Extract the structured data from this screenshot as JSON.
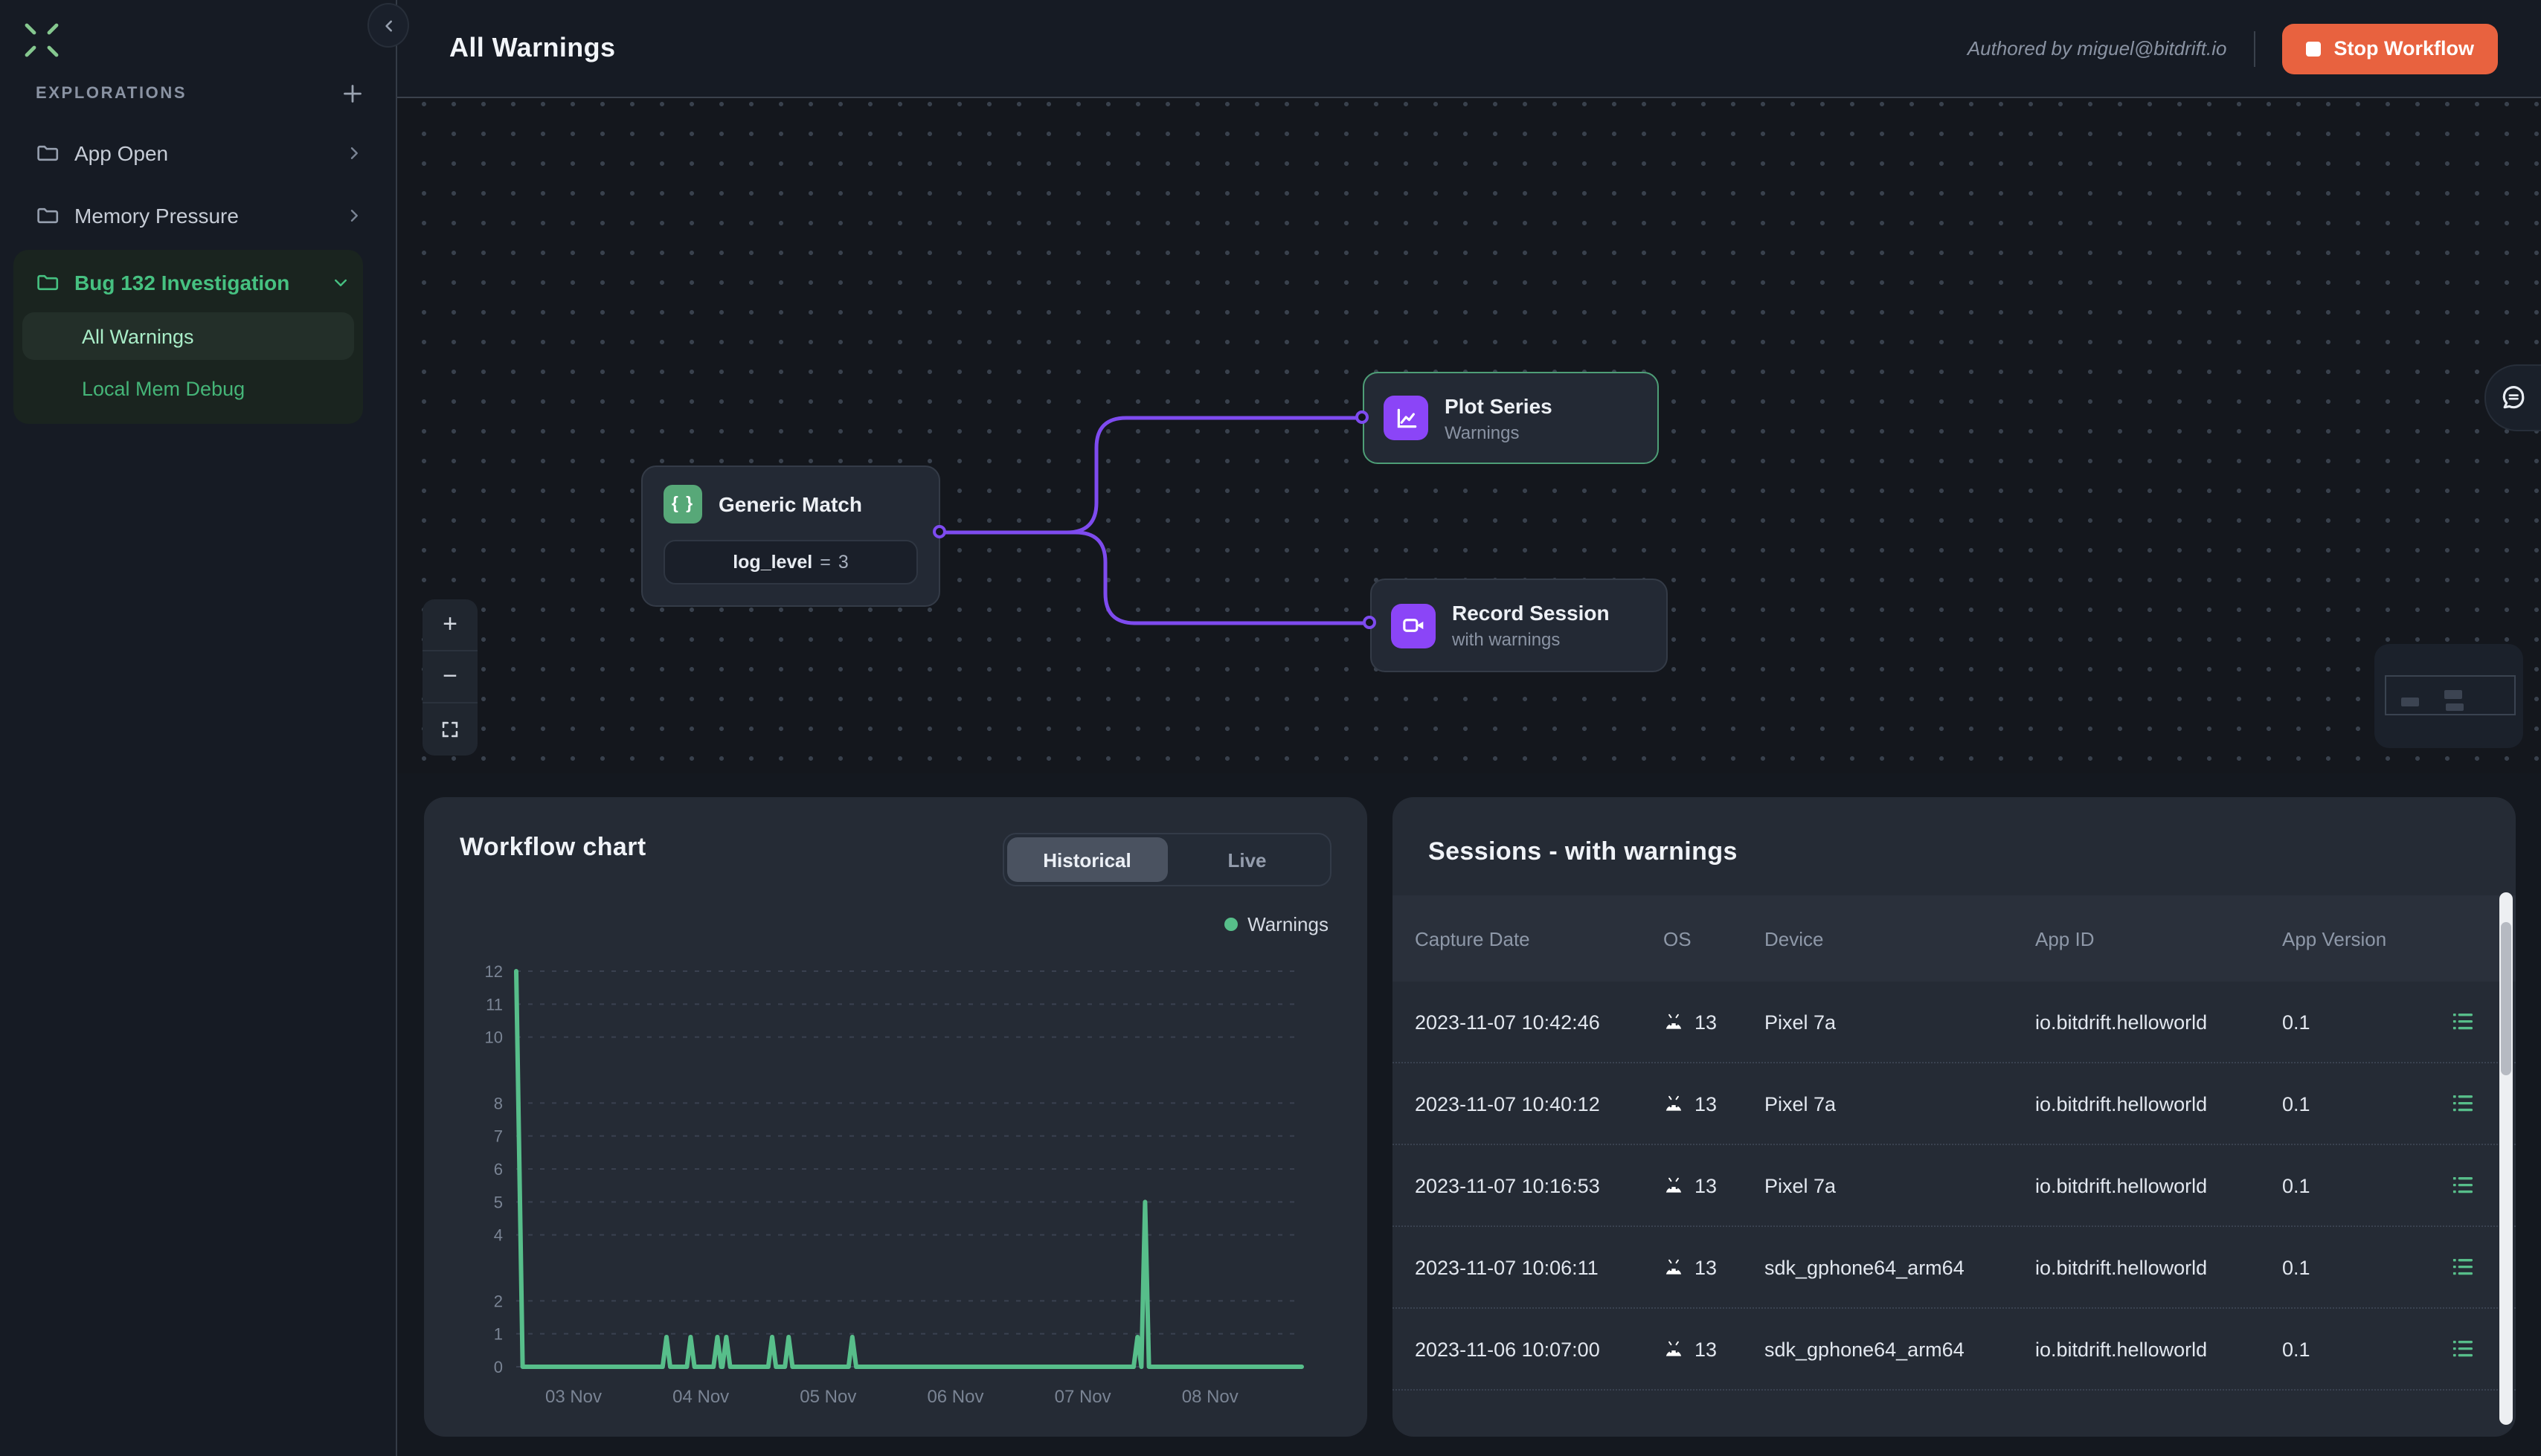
{
  "colors": {
    "accent_green": "#57BE8A",
    "accent_purple": "#8B45F7",
    "edge_purple": "#7E4BEF",
    "selected_node_border": "#4E9E77",
    "stop_orange": "#E8623F",
    "sidebar_active_green": "#46C181",
    "card_bg": "#252B35",
    "topbar_bg": "#161B24"
  },
  "topbar": {
    "title": "All Warnings",
    "authored_by": "Authored by miguel@bitdrift.io",
    "stop_button": "Stop Workflow"
  },
  "sidebar": {
    "section": "EXPLORATIONS",
    "items": [
      {
        "label": "App Open",
        "state": "collapsed"
      },
      {
        "label": "Memory Pressure",
        "state": "collapsed"
      },
      {
        "label": "Bug 132 Investigation",
        "state": "expanded",
        "children": [
          {
            "label": "All Warnings",
            "selected": true
          },
          {
            "label": "Local Mem Debug",
            "selected": false
          }
        ]
      }
    ]
  },
  "canvas": {
    "nodes": {
      "generic_match": {
        "title": "Generic Match",
        "icon": "braces-icon",
        "icon_glyph": "{ }",
        "condition": {
          "field": "log_level",
          "operator": "=",
          "value": "3"
        }
      },
      "plot_series": {
        "title": "Plot Series",
        "subtitle": "Warnings",
        "icon": "line-chart-icon",
        "selected": true
      },
      "record_session": {
        "title": "Record Session",
        "subtitle": "with warnings",
        "icon": "video-camera-icon"
      }
    },
    "controls": {
      "zoom_in": "+",
      "zoom_out": "−",
      "fit_view": "fit-view-icon"
    }
  },
  "chart_card": {
    "title": "Workflow chart",
    "tabs": [
      {
        "label": "Historical",
        "active": true
      },
      {
        "label": "Live",
        "active": false
      }
    ],
    "legend": {
      "label": "Warnings",
      "color": "#57BE8A"
    }
  },
  "chart_data": {
    "type": "line",
    "title": "Workflow chart",
    "series_name": "Warnings",
    "line_color": "#57BE8A",
    "grid": "dashed-horizontal",
    "legend_position": "top-right",
    "ylim": [
      0,
      12
    ],
    "y_ticks": [
      12,
      11,
      10,
      8,
      7,
      6,
      5,
      4,
      2,
      1,
      0
    ],
    "x_ticks": [
      "03 Nov",
      "04 Nov",
      "05 Nov",
      "06 Nov",
      "07 Nov",
      "08 Nov"
    ],
    "x_tick_days": [
      3,
      4,
      5,
      6,
      7,
      8
    ],
    "x_range_days": [
      2.55,
      8.72
    ],
    "baseline": 0,
    "spikes": [
      {
        "day": 2.57,
        "value": 12
      },
      {
        "day": 3.73,
        "value": 0.9
      },
      {
        "day": 3.92,
        "value": 0.9
      },
      {
        "day": 4.13,
        "value": 0.9
      },
      {
        "day": 4.2,
        "value": 0.9
      },
      {
        "day": 4.56,
        "value": 0.9
      },
      {
        "day": 4.69,
        "value": 0.9
      },
      {
        "day": 5.19,
        "value": 0.9
      },
      {
        "day": 7.43,
        "value": 0.9
      },
      {
        "day": 7.49,
        "value": 5
      }
    ]
  },
  "sessions": {
    "title": "Sessions - with warnings",
    "columns": [
      "Capture Date",
      "OS",
      "Device",
      "App ID",
      "App Version"
    ],
    "rows": [
      {
        "capture_date": "2023-11-07 10:42:46",
        "os": "13",
        "device": "Pixel 7a",
        "app_id": "io.bitdrift.helloworld",
        "app_version": "0.1"
      },
      {
        "capture_date": "2023-11-07 10:40:12",
        "os": "13",
        "device": "Pixel 7a",
        "app_id": "io.bitdrift.helloworld",
        "app_version": "0.1"
      },
      {
        "capture_date": "2023-11-07 10:16:53",
        "os": "13",
        "device": "Pixel 7a",
        "app_id": "io.bitdrift.helloworld",
        "app_version": "0.1"
      },
      {
        "capture_date": "2023-11-07 10:06:11",
        "os": "13",
        "device": "sdk_gphone64_arm64",
        "app_id": "io.bitdrift.helloworld",
        "app_version": "0.1"
      },
      {
        "capture_date": "2023-11-06 10:07:00",
        "os": "13",
        "device": "sdk_gphone64_arm64",
        "app_id": "io.bitdrift.helloworld",
        "app_version": "0.1"
      }
    ]
  }
}
